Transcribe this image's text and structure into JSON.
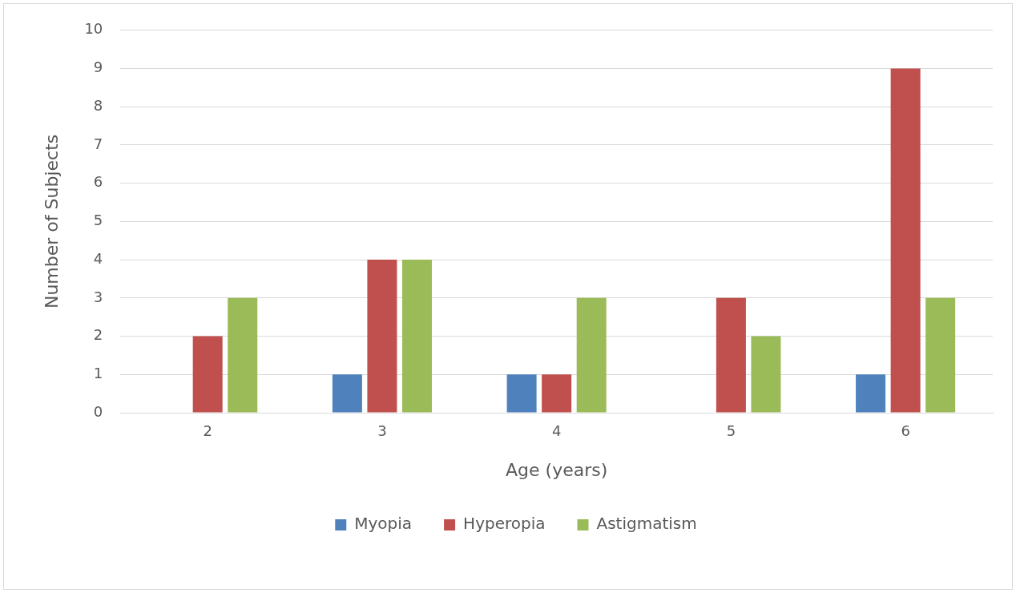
{
  "chart_data": {
    "type": "bar",
    "xlabel": "Age (years)",
    "ylabel": "Number of Subjects",
    "categories": [
      "2",
      "3",
      "4",
      "5",
      "6"
    ],
    "series": [
      {
        "name": "Myopia",
        "color": "#4f81bd",
        "values": [
          0,
          1,
          1,
          0,
          1
        ]
      },
      {
        "name": "Hyperopia",
        "color": "#c0504d",
        "values": [
          2,
          4,
          1,
          3,
          9
        ]
      },
      {
        "name": "Astigmatism",
        "color": "#9bbb59",
        "values": [
          3,
          4,
          3,
          2,
          3
        ]
      }
    ],
    "ylim": [
      0,
      10
    ],
    "yticks": [
      0,
      1,
      2,
      3,
      4,
      5,
      6,
      7,
      8,
      9,
      10
    ],
    "grid": "y",
    "legend": "bottom"
  }
}
